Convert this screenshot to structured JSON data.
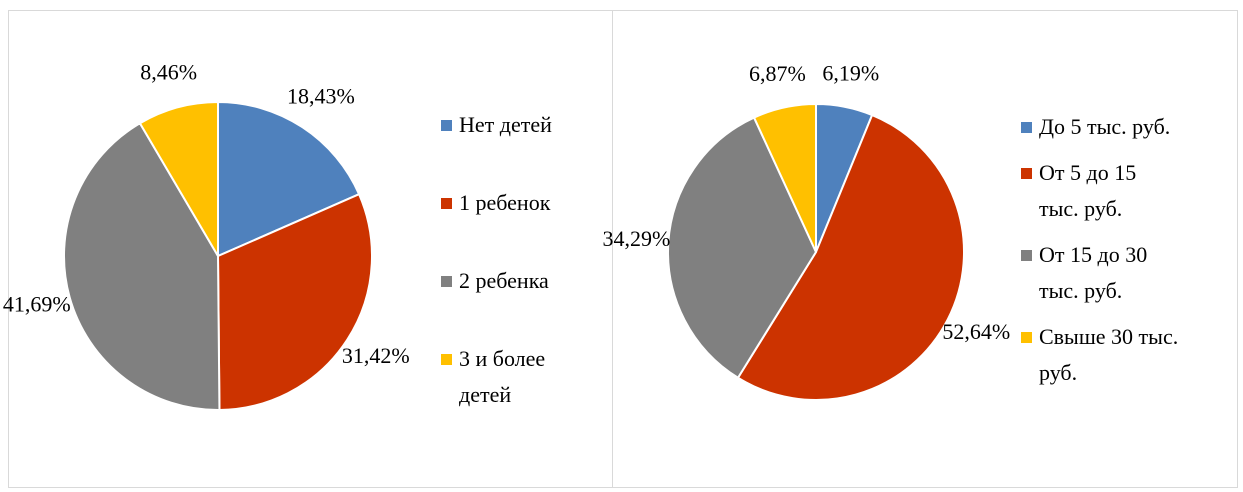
{
  "chart_data": [
    {
      "type": "pie",
      "categories": [
        "Нет детей",
        "1 ребенок",
        "2 ребенка",
        "3 и более детей"
      ],
      "values": [
        18.43,
        31.42,
        41.69,
        8.46
      ],
      "value_labels": [
        "18,43%",
        "31,42%",
        "41,69%",
        "8,46%"
      ],
      "colors": [
        "#4f81bd",
        "#cc3300",
        "#808080",
        "#ffc000"
      ]
    },
    {
      "type": "pie",
      "categories": [
        "До 5 тыс. руб.",
        "От 5 до 15 тыс. руб.",
        "От 15 до 30 тыс. руб.",
        "Свыше 30 тыс. руб."
      ],
      "values": [
        6.19,
        52.64,
        34.29,
        6.87
      ],
      "value_labels": [
        "6,19%",
        "52,64%",
        "34,29%",
        "6,87%"
      ],
      "colors": [
        "#4f81bd",
        "#cc3300",
        "#808080",
        "#ffc000"
      ]
    }
  ]
}
